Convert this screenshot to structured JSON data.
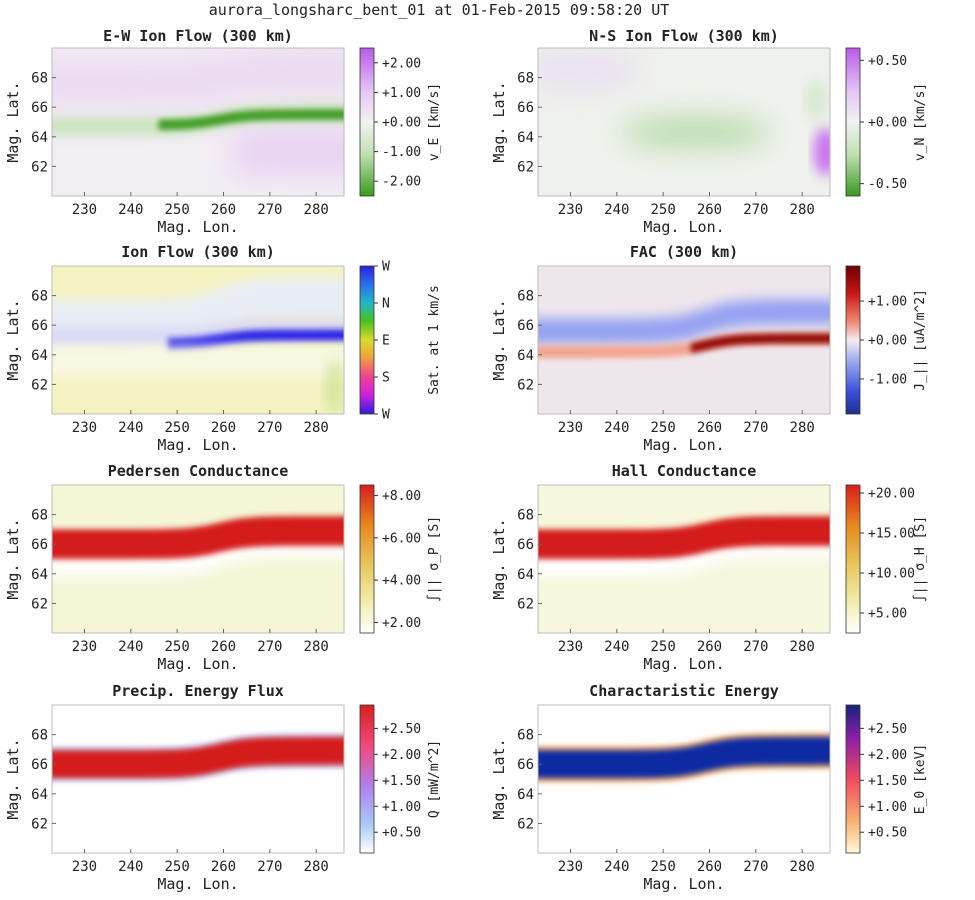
{
  "suptitle": "aurora_longsharc_bent_01 at 01-Feb-2015 09:58:20 UT",
  "colors": {
    "green": "#3a9a1e",
    "purple": "#c86ef0",
    "blue": "#1a16e6",
    "red": "#d41f1f",
    "darkred": "#8a0000",
    "darkblue": "#1d2f8f",
    "navy": "#0f2aa3",
    "yellow": "#f3f2c0"
  },
  "chart_data": [
    {
      "id": "ew",
      "type": "heatmap",
      "title": "E-W Ion Flow (300 km)",
      "xlabel": "",
      "ylabel": "Mag. Lat.",
      "xlim": [
        223,
        286
      ],
      "ylim": [
        60,
        70
      ],
      "xticks": [
        "230",
        "240",
        "250",
        "260",
        "270",
        "280"
      ],
      "yticks": [
        "62",
        "64",
        "66",
        "68"
      ],
      "colorbar": {
        "label": "v_E [km/s]",
        "ticks": [
          "+2.00",
          "+1.00",
          "+0.00",
          "-1.00",
          "-2.00"
        ],
        "range": [
          -2.5,
          2.5
        ],
        "tick_values": [
          2,
          1,
          0,
          -1,
          -2
        ]
      },
      "features": [
        {
          "desc": "westward flow channel",
          "value": -2.2,
          "lat_center_west": 64.6,
          "lat_center_east": 65.4
        },
        {
          "desc": "weak eastward flow poleward",
          "value": 0.3
        },
        {
          "desc": "weak eastward flow equatorward",
          "value": 0.4
        }
      ]
    },
    {
      "id": "ns",
      "type": "heatmap",
      "title": "N-S Ion Flow (300 km)",
      "xlabel": "Mag. Lon.",
      "ylabel": "Mag. Lat.",
      "xlim": [
        223,
        286
      ],
      "ylim": [
        60,
        70
      ],
      "xticks": [
        "230",
        "240",
        "250",
        "260",
        "270",
        "280"
      ],
      "yticks": [
        "62",
        "64",
        "66",
        "68"
      ],
      "colorbar": {
        "label": "v_N [km/s]",
        "ticks": [
          "+0.50",
          "+0.00",
          "-0.50"
        ],
        "range": [
          -0.6,
          0.6
        ],
        "tick_values": [
          0.5,
          0,
          -0.5
        ]
      },
      "features": [
        {
          "desc": "southward flow patch",
          "value": -0.3,
          "lon": 257,
          "lat": 64.5
        },
        {
          "desc": "northward flow at east edge",
          "value": 0.55,
          "lon": 285,
          "lat": 63.2
        }
      ]
    },
    {
      "id": "ion",
      "type": "heatmap",
      "title": "Ion Flow (300 km)",
      "xlabel": "Mag. Lon.",
      "ylabel": "Mag. Lat.",
      "xlim": [
        223,
        286
      ],
      "ylim": [
        60,
        70
      ],
      "xticks": [
        "230",
        "240",
        "250",
        "260",
        "270",
        "280"
      ],
      "yticks": [
        "62",
        "64",
        "66",
        "68"
      ],
      "colorbar": {
        "label": "Sat. at 1 km/s",
        "ticks": [
          "W",
          "N",
          "E",
          "S",
          "W"
        ],
        "range": [
          0,
          4
        ],
        "tick_values": [
          4,
          3,
          2,
          1,
          0
        ]
      },
      "features": [
        {
          "desc": "westward flow band (blue)",
          "direction": "W"
        },
        {
          "desc": "background weak eastward flow (yellow)",
          "direction": "E"
        }
      ]
    },
    {
      "id": "fac",
      "type": "heatmap",
      "title": "FAC (300 km)",
      "xlabel": "Mag. Lon.",
      "ylabel": "Mag. Lat.",
      "xlim": [
        223,
        286
      ],
      "ylim": [
        60,
        70
      ],
      "xticks": [
        "230",
        "240",
        "250",
        "260",
        "270",
        "280"
      ],
      "yticks": [
        "62",
        "64",
        "66",
        "68"
      ],
      "colorbar": {
        "label": "J_|| [uA/m^2]",
        "ticks": [
          "+1.00",
          "+0.00",
          "-1.00"
        ],
        "range": [
          -1.9,
          1.9
        ],
        "tick_values": [
          1,
          0,
          -1
        ]
      },
      "features": [
        {
          "desc": "upward FAC band",
          "value": 1.9
        },
        {
          "desc": "downward FAC band",
          "value": -1.1
        }
      ]
    },
    {
      "id": "ped",
      "type": "heatmap",
      "title": "Pedersen Conductance",
      "xlabel": "Mag. Lon.",
      "ylabel": "Mag. Lat.",
      "xlim": [
        223,
        286
      ],
      "ylim": [
        60,
        70
      ],
      "xticks": [
        "230",
        "240",
        "250",
        "260",
        "270",
        "280"
      ],
      "yticks": [
        "62",
        "64",
        "66",
        "68"
      ],
      "colorbar": {
        "label": "∫|| σ_P [S]",
        "ticks": [
          "+8.00",
          "+6.00",
          "+4.00",
          "+2.00"
        ],
        "range": [
          1.5,
          8.5
        ],
        "tick_values": [
          8,
          6,
          4,
          2
        ]
      },
      "features": [
        {
          "desc": "arc conductance",
          "value": 8.5
        },
        {
          "desc": "background",
          "value": 2.3
        }
      ]
    },
    {
      "id": "hall",
      "type": "heatmap",
      "title": "Hall Conductance",
      "xlabel": "Mag. Lon.",
      "ylabel": "Mag. Lat.",
      "xlim": [
        223,
        286
      ],
      "ylim": [
        60,
        70
      ],
      "xticks": [
        "230",
        "240",
        "250",
        "260",
        "270",
        "280"
      ],
      "yticks": [
        "62",
        "64",
        "66",
        "68"
      ],
      "colorbar": {
        "label": "∫|| σ_H [S]",
        "ticks": [
          "+20.00",
          "+15.00",
          "+10.00",
          "+5.00"
        ],
        "range": [
          2.5,
          21
        ],
        "tick_values": [
          20,
          15,
          10,
          5
        ]
      },
      "features": [
        {
          "desc": "arc conductance",
          "value": 21
        },
        {
          "desc": "background",
          "value": 3.4
        }
      ]
    },
    {
      "id": "prec",
      "type": "heatmap",
      "title": "Precip. Energy Flux",
      "xlabel": "Mag. Lon.",
      "ylabel": "Mag. Lat.",
      "xlim": [
        223,
        286
      ],
      "ylim": [
        60,
        70
      ],
      "xticks": [
        "230",
        "240",
        "250",
        "260",
        "270",
        "280"
      ],
      "yticks": [
        "62",
        "64",
        "66",
        "68"
      ],
      "colorbar": {
        "label": "Q [mW/m^2]",
        "ticks": [
          "+2.50",
          "+2.00",
          "+1.50",
          "+1.00",
          "+0.50"
        ],
        "range": [
          0.1,
          2.95
        ],
        "tick_values": [
          2.5,
          2,
          1.5,
          1,
          0.5
        ]
      },
      "features": [
        {
          "desc": "arc energy flux",
          "value": 2.95
        },
        {
          "desc": "background",
          "value": 0.1
        }
      ]
    },
    {
      "id": "char",
      "type": "heatmap",
      "title": "Charactaristic Energy",
      "xlabel": "Mag. Lon.",
      "ylabel": "Mag. Lat.",
      "xlim": [
        223,
        286
      ],
      "ylim": [
        60,
        70
      ],
      "xticks": [
        "230",
        "240",
        "250",
        "260",
        "270",
        "280"
      ],
      "yticks": [
        "62",
        "64",
        "66",
        "68"
      ],
      "colorbar": {
        "label": "E_0 [keV]",
        "ticks": [
          "+2.50",
          "+2.00",
          "+1.50",
          "+1.00",
          "+0.50"
        ],
        "range": [
          0.1,
          2.95
        ],
        "tick_values": [
          2.5,
          2,
          1.5,
          1,
          0.5
        ]
      },
      "features": [
        {
          "desc": "arc characteristic energy",
          "value": 2.95
        },
        {
          "desc": "background",
          "value": 0.1
        }
      ]
    }
  ]
}
